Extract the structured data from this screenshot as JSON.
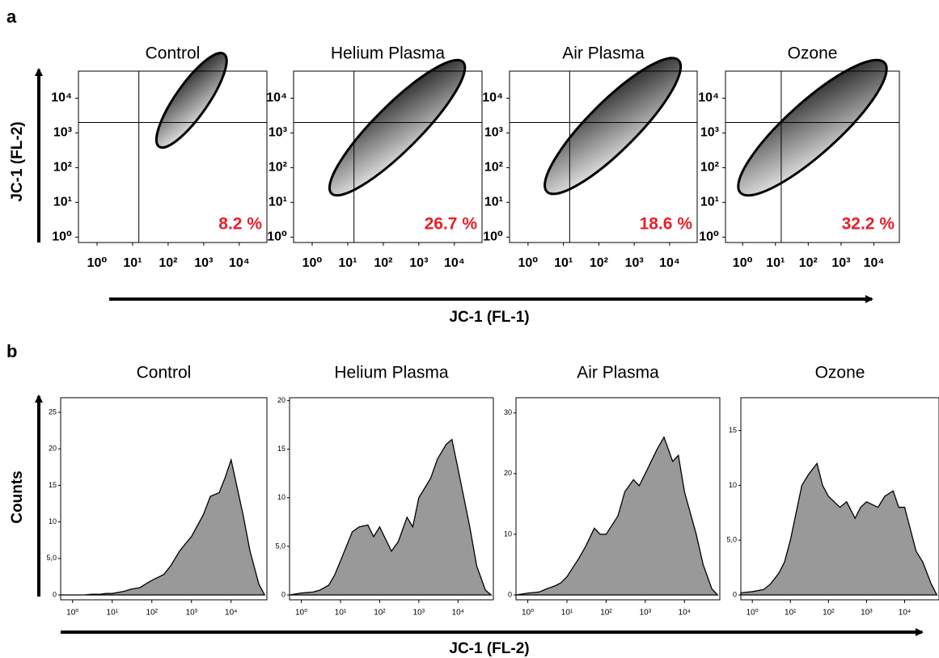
{
  "panels": [
    {
      "label": "a",
      "y_label": "JC-1 (FL-2)",
      "x_label": "JC-1 (FL-1)"
    },
    {
      "label": "b",
      "y_label": "Counts",
      "x_label": "JC-1 (FL-2)"
    }
  ],
  "chart_data": [
    {
      "type": "contour",
      "title": "Control",
      "annotation": "8.2 %",
      "annotation_color": "#e8202a",
      "xscale": "log",
      "yscale": "log",
      "xlim": [
        0.3,
        60000
      ],
      "ylim": [
        0.7,
        60000
      ],
      "quadrant_x": 15,
      "quadrant_y": 2000,
      "xticks": [
        {
          "value": 1,
          "label": "10⁰"
        },
        {
          "value": 10,
          "label": "10¹"
        },
        {
          "value": 100,
          "label": "10²"
        },
        {
          "value": 1000,
          "label": "10³"
        },
        {
          "value": 10000,
          "label": "10⁴"
        }
      ],
      "yticks": [
        {
          "value": 1,
          "label": "10⁰"
        },
        {
          "value": 10,
          "label": "10¹"
        },
        {
          "value": 100,
          "label": "10²"
        },
        {
          "value": 1000,
          "label": "10³"
        },
        {
          "value": 10000,
          "label": "10⁴"
        }
      ]
    },
    {
      "type": "contour",
      "title": "Helium Plasma",
      "annotation": "26.7 %",
      "annotation_color": "#e8202a",
      "xscale": "log",
      "yscale": "log",
      "xlim": [
        0.3,
        60000
      ],
      "ylim": [
        0.7,
        60000
      ],
      "quadrant_x": 15,
      "quadrant_y": 2000,
      "xticks": [
        {
          "value": 1,
          "label": "10⁰"
        },
        {
          "value": 10,
          "label": "10¹"
        },
        {
          "value": 100,
          "label": "10²"
        },
        {
          "value": 1000,
          "label": "10³"
        },
        {
          "value": 10000,
          "label": "10⁴"
        }
      ],
      "yticks": [
        {
          "value": 1,
          "label": "10⁰"
        },
        {
          "value": 10,
          "label": "10¹"
        },
        {
          "value": 100,
          "label": "10²"
        },
        {
          "value": 1000,
          "label": "10³"
        },
        {
          "value": 10000,
          "label": "10⁴"
        }
      ]
    },
    {
      "type": "contour",
      "title": "Air Plasma",
      "annotation": "18.6 %",
      "annotation_color": "#e8202a",
      "xscale": "log",
      "yscale": "log",
      "xlim": [
        0.3,
        60000
      ],
      "ylim": [
        0.7,
        60000
      ],
      "quadrant_x": 15,
      "quadrant_y": 2000,
      "xticks": [
        {
          "value": 1,
          "label": "10⁰"
        },
        {
          "value": 10,
          "label": "10¹"
        },
        {
          "value": 100,
          "label": "10²"
        },
        {
          "value": 1000,
          "label": "10³"
        },
        {
          "value": 10000,
          "label": "10⁴"
        }
      ],
      "yticks": [
        {
          "value": 1,
          "label": "10⁰"
        },
        {
          "value": 10,
          "label": "10¹"
        },
        {
          "value": 100,
          "label": "10²"
        },
        {
          "value": 1000,
          "label": "10³"
        },
        {
          "value": 10000,
          "label": "10⁴"
        }
      ]
    },
    {
      "type": "contour",
      "title": "Ozone",
      "annotation": "32.2 %",
      "annotation_color": "#e8202a",
      "xscale": "log",
      "yscale": "log",
      "xlim": [
        0.3,
        60000
      ],
      "ylim": [
        0.7,
        60000
      ],
      "quadrant_x": 15,
      "quadrant_y": 2000,
      "xticks": [
        {
          "value": 1,
          "label": "10⁰"
        },
        {
          "value": 10,
          "label": "10¹"
        },
        {
          "value": 100,
          "label": "10²"
        },
        {
          "value": 1000,
          "label": "10³"
        },
        {
          "value": 10000,
          "label": "10⁴"
        }
      ],
      "yticks": [
        {
          "value": 1,
          "label": "10⁰"
        },
        {
          "value": 10,
          "label": "10¹"
        },
        {
          "value": 100,
          "label": "10²"
        },
        {
          "value": 1000,
          "label": "10³"
        },
        {
          "value": 10000,
          "label": "10⁴"
        }
      ]
    },
    {
      "type": "area",
      "title": "Control",
      "xscale": "log",
      "color": "#999999",
      "x": [
        0.5,
        1,
        2,
        3,
        5,
        7,
        10,
        20,
        30,
        50,
        70,
        100,
        200,
        300,
        500,
        700,
        1000,
        2000,
        3000,
        5000,
        7000,
        10000,
        20000,
        30000,
        50000,
        70000
      ],
      "values": [
        0,
        0,
        0,
        0.1,
        0.1,
        0.2,
        0.2,
        0.5,
        0.8,
        1,
        1.5,
        2,
        2.8,
        4,
        6,
        7,
        8,
        11,
        13.5,
        14,
        16,
        18.5,
        11,
        6,
        1.5,
        0
      ],
      "xlim": [
        0.5,
        80000
      ],
      "ylim": [
        0,
        27
      ],
      "xticks": [
        {
          "value": 1,
          "label": "10⁰"
        },
        {
          "value": 10,
          "label": "10¹"
        },
        {
          "value": 100,
          "label": "10²"
        },
        {
          "value": 1000,
          "label": "10³"
        },
        {
          "value": 10000,
          "label": "10⁴"
        }
      ],
      "yticks": [
        0,
        {
          "value": 5,
          "label": "5,0"
        },
        10,
        15,
        20,
        25
      ]
    },
    {
      "type": "area",
      "title": "Helium Plasma",
      "xscale": "log",
      "color": "#999999",
      "x": [
        0.5,
        1,
        2,
        3,
        5,
        7,
        10,
        20,
        30,
        50,
        70,
        100,
        200,
        300,
        500,
        700,
        1000,
        2000,
        3000,
        5000,
        7000,
        10000,
        20000,
        30000,
        50000,
        70000
      ],
      "values": [
        0,
        0.2,
        0.3,
        0.5,
        1,
        2,
        3.5,
        6.5,
        7,
        7.2,
        6,
        7,
        4.5,
        5.5,
        8,
        7,
        10,
        12,
        14,
        15.5,
        16,
        13,
        7,
        3,
        0.5,
        0
      ],
      "xlim": [
        0.5,
        80000
      ],
      "ylim": [
        0,
        20.3
      ],
      "xticks": [
        {
          "value": 1,
          "label": "10⁰"
        },
        {
          "value": 10,
          "label": "10¹"
        },
        {
          "value": 100,
          "label": "10²"
        },
        {
          "value": 1000,
          "label": "10³"
        },
        {
          "value": 10000,
          "label": "10⁴"
        }
      ],
      "yticks": [
        0,
        {
          "value": 5,
          "label": "5,0"
        },
        10,
        15,
        20
      ]
    },
    {
      "type": "area",
      "title": "Air Plasma",
      "xscale": "log",
      "color": "#999999",
      "x": [
        0.5,
        1,
        2,
        3,
        5,
        7,
        10,
        20,
        30,
        50,
        70,
        100,
        200,
        300,
        500,
        700,
        1000,
        2000,
        3000,
        5000,
        7000,
        10000,
        20000,
        30000,
        50000,
        70000
      ],
      "values": [
        0,
        0.3,
        0.5,
        1,
        1.5,
        2,
        3,
        6,
        8,
        11,
        10,
        10,
        13,
        17,
        19,
        18,
        20,
        24,
        26,
        22,
        23,
        17,
        10,
        5,
        1,
        0
      ],
      "xlim": [
        0.5,
        80000
      ],
      "ylim": [
        0,
        32.5
      ],
      "xticks": [
        {
          "value": 1,
          "label": "10⁰"
        },
        {
          "value": 10,
          "label": "10¹"
        },
        {
          "value": 100,
          "label": "10²"
        },
        {
          "value": 1000,
          "label": "10³"
        },
        {
          "value": 10000,
          "label": "10⁴"
        }
      ],
      "yticks": [
        0,
        10,
        20,
        30
      ]
    },
    {
      "type": "area",
      "title": "Ozone",
      "xscale": "log",
      "color": "#999999",
      "x": [
        0.5,
        1,
        2,
        3,
        5,
        7,
        10,
        20,
        30,
        50,
        70,
        100,
        200,
        300,
        500,
        700,
        1000,
        2000,
        3000,
        5000,
        7000,
        10000,
        20000,
        30000,
        50000,
        70000
      ],
      "values": [
        0.2,
        0.3,
        0.5,
        1,
        2,
        3,
        5,
        10,
        11,
        12,
        10,
        9,
        8,
        8.5,
        7,
        8,
        8.5,
        8,
        9,
        9.5,
        8,
        8,
        4,
        3,
        1,
        0
      ],
      "xlim": [
        0.5,
        80000
      ],
      "ylim": [
        0,
        18
      ],
      "xticks": [
        {
          "value": 1,
          "label": "10⁰"
        },
        {
          "value": 10,
          "label": "10¹"
        },
        {
          "value": 100,
          "label": "10²"
        },
        {
          "value": 1000,
          "label": "10³"
        },
        {
          "value": 10000,
          "label": "10⁴"
        }
      ],
      "yticks": [
        0,
        {
          "value": 5,
          "label": "5,0"
        },
        10,
        15
      ]
    }
  ]
}
